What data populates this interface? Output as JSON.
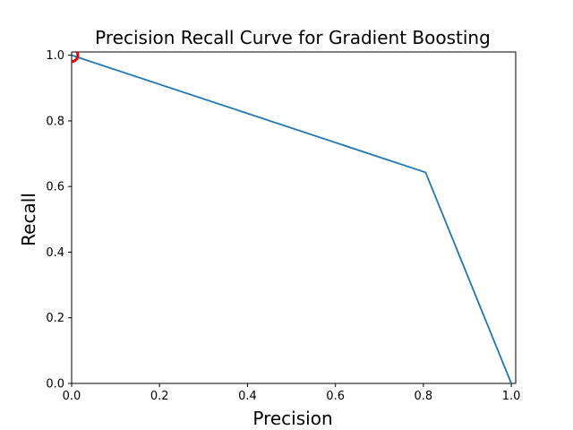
{
  "chart_data": {
    "type": "line",
    "title": "Precision Recall Curve for Gradient Boosting",
    "xlabel": "Precision",
    "ylabel": "Recall",
    "xlim": [
      0.0,
      1.01
    ],
    "ylim": [
      0.0,
      1.01
    ],
    "xticks": [
      0.0,
      0.2,
      0.4,
      0.6,
      0.8,
      1.0
    ],
    "yticks": [
      0.0,
      0.2,
      0.4,
      0.6,
      0.8,
      1.0
    ],
    "xtick_labels": [
      "0.0",
      "0.2",
      "0.4",
      "0.6",
      "0.8",
      "1.0"
    ],
    "ytick_labels": [
      "0.0",
      "0.2",
      "0.4",
      "0.6",
      "0.8",
      "1.0"
    ],
    "grid": false,
    "series": [
      {
        "x": [
          0.0,
          0.805,
          1.0
        ],
        "y": [
          1.0,
          0.643,
          0.0
        ],
        "color": "#1f77b4"
      }
    ],
    "marker": {
      "x": 0.0,
      "y": 1.0,
      "shape": "circle-outline",
      "color": "#e60000"
    }
  }
}
